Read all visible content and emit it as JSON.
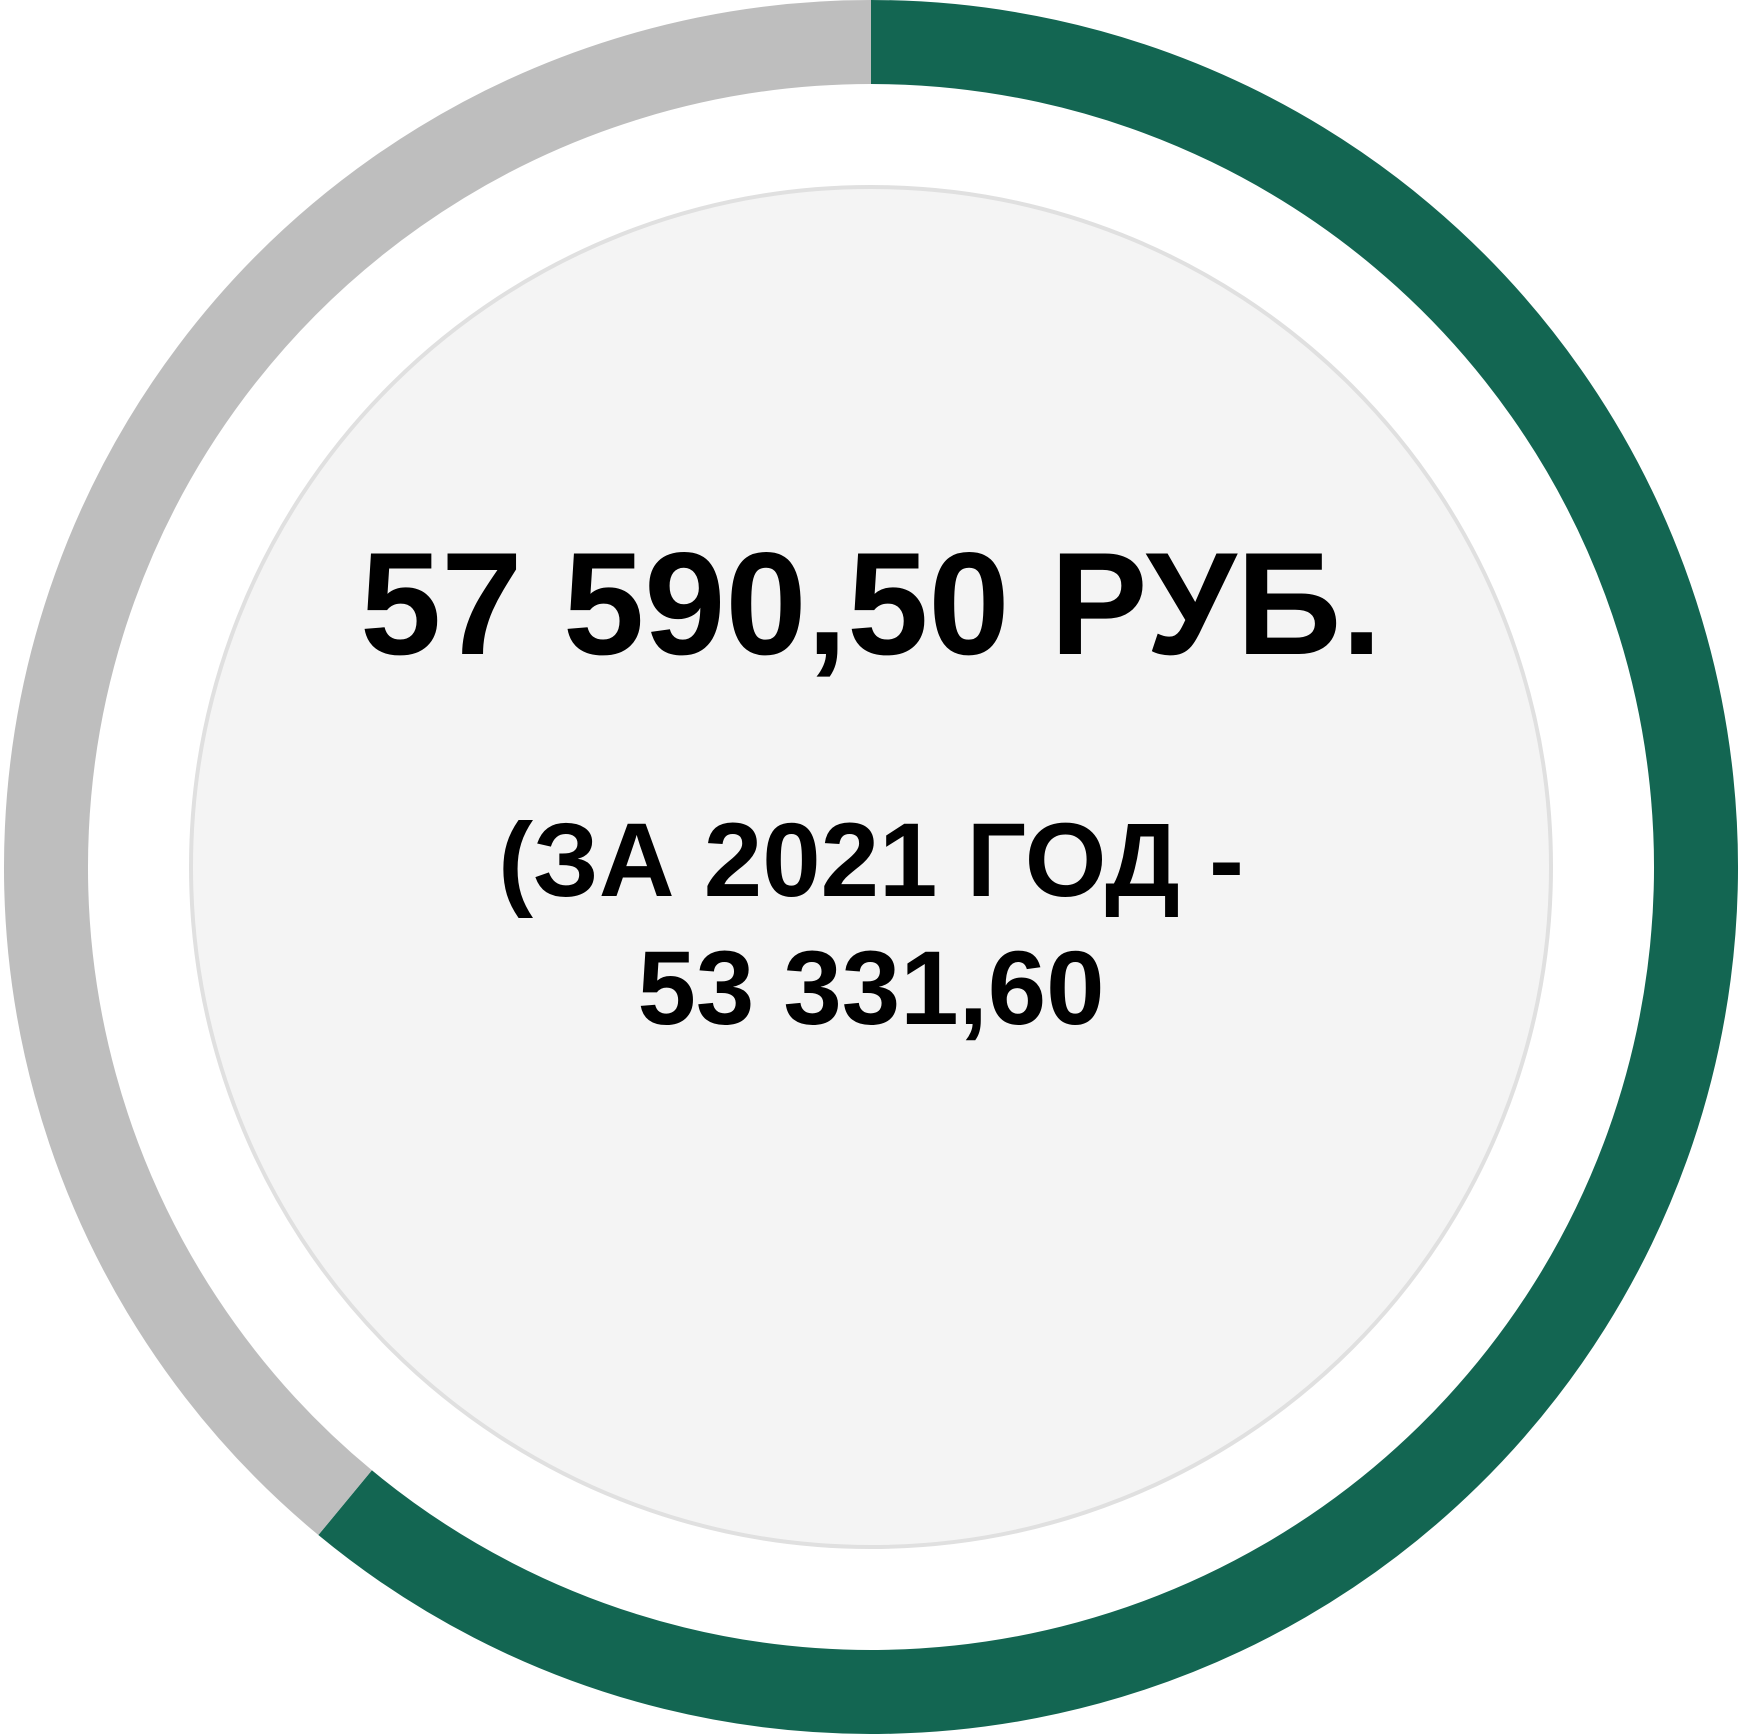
{
  "chart_data": {
    "type": "donut",
    "values": [
      61,
      39
    ],
    "colors": [
      "#136652",
      "#bebebe"
    ],
    "title": "57 590,50 РУБ.",
    "subtitle": "(ЗА 2021 ГОД - 53 331,60"
  }
}
